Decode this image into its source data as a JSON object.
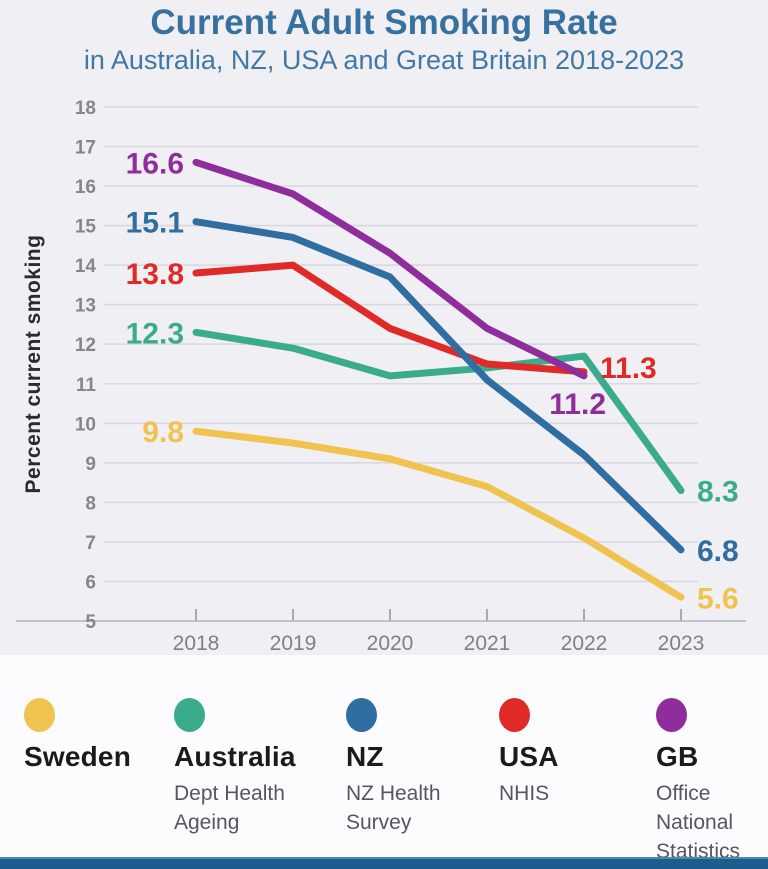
{
  "chart_data": {
    "type": "line",
    "title": "Current Adult Smoking Rate",
    "subtitle": "in Australia, NZ, USA and Great Britain 2018-2023",
    "ylabel": "Percent current smoking",
    "x": [
      "2018",
      "2019",
      "2020",
      "2021",
      "2022",
      "2023"
    ],
    "ylim": [
      5,
      18
    ],
    "ytick_step": 1,
    "grid": true,
    "legend_position": "bottom",
    "series": [
      {
        "name": "Sweden",
        "source_lines": [],
        "color": "#F0C350",
        "values": [
          9.8,
          9.5,
          9.1,
          8.4,
          7.1,
          5.6
        ],
        "start_label": "9.8",
        "end_label": "5.6",
        "end_label_pos": "right"
      },
      {
        "name": "Australia",
        "source_lines": [
          "Dept Health",
          "Ageing"
        ],
        "color": "#3BAB8D",
        "values": [
          12.3,
          11.9,
          11.2,
          11.4,
          11.7,
          8.3
        ],
        "start_label": "12.3",
        "end_label": "8.3",
        "end_label_pos": "right"
      },
      {
        "name": "USA",
        "source_lines": [
          "NHIS"
        ],
        "color": "#DF2A28",
        "values": [
          13.8,
          14.0,
          12.4,
          11.5,
          11.3,
          null
        ],
        "start_label": "13.8",
        "end_label": "11.3",
        "end_label_pos": "right",
        "end_label_dy": 6
      },
      {
        "name": "GB",
        "source_lines": [
          "Office",
          "National",
          "Statistics"
        ],
        "color": "#8F2D9D",
        "values": [
          16.6,
          15.8,
          14.3,
          12.4,
          11.2,
          null
        ],
        "start_label": "16.6",
        "end_label": "11.2",
        "end_label_pos": "below-left"
      },
      {
        "name": "NZ",
        "source_lines": [
          "NZ Health",
          "Survey"
        ],
        "color": "#2F6EA1",
        "values": [
          15.1,
          14.7,
          13.7,
          11.1,
          9.2,
          6.8
        ],
        "start_label": "15.1",
        "end_label": "6.8",
        "end_label_pos": "right"
      }
    ]
  },
  "legend": {
    "items": [
      {
        "name": "Sweden",
        "color": "#F0C350",
        "source_lines": []
      },
      {
        "name": "Australia",
        "color": "#3BAB8D",
        "source_lines": [
          "Dept Health",
          "Ageing"
        ]
      },
      {
        "name": "NZ",
        "color": "#2F6EA1",
        "source_lines": [
          "NZ Health",
          "Survey"
        ]
      },
      {
        "name": "USA",
        "color": "#DF2A28",
        "source_lines": [
          "NHIS"
        ]
      },
      {
        "name": "GB",
        "color": "#8F2D9D",
        "source_lines": [
          "Office",
          "National",
          "Statistics"
        ]
      }
    ]
  },
  "theme": {
    "background": "#F0EFF3",
    "panel": "#FCFCFE",
    "title_color": "#36719F",
    "subtitle_color": "#4078A6",
    "grid_color": "#D8D8E2",
    "axis_line_color": "#C2C2CE",
    "axis_text_color": "#85858D",
    "bottom_bar": "#1D5D8E",
    "bottom_bar_edge": "#4D87B4"
  }
}
